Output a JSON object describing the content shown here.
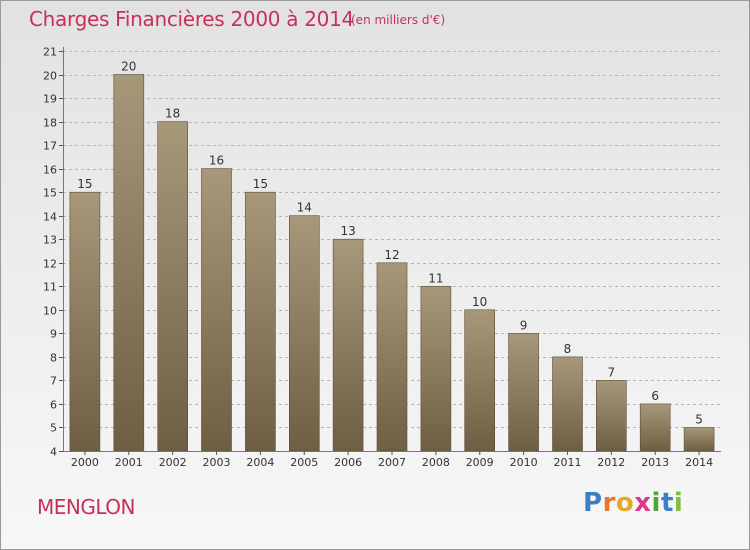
{
  "colors": {
    "accent": "#c8305a",
    "bar_light": "#a7987a",
    "bar_dark": "#6e5f44",
    "axis_text": "#333333"
  },
  "chart_data": {
    "type": "bar",
    "title": "Charges Financières 2000 à 2014",
    "subtitle": "(en milliers d'€)",
    "categories": [
      "2000",
      "2001",
      "2002",
      "2003",
      "2004",
      "2005",
      "2006",
      "2007",
      "2008",
      "2009",
      "2010",
      "2011",
      "2012",
      "2013",
      "2014"
    ],
    "values": [
      15,
      20,
      18,
      16,
      15,
      14,
      13,
      12,
      11,
      10,
      9,
      8,
      7,
      6,
      5
    ],
    "y_ticks": [
      4,
      5,
      6,
      7,
      8,
      9,
      10,
      11,
      12,
      13,
      14,
      15,
      16,
      17,
      18,
      19,
      20,
      21
    ],
    "ylim": [
      4,
      21
    ],
    "xlabel": "",
    "ylabel": "",
    "grid": true
  },
  "footer": {
    "commune": "MENGLON",
    "logo_letters": [
      "P",
      "r",
      "o",
      "x",
      "i",
      "t",
      "i"
    ],
    "logo_colors": [
      "#3b7fc4",
      "#e8762d",
      "#e2a92a",
      "#d93a8c",
      "#4aa63c",
      "#3b7fc4",
      "#7dbf3a"
    ]
  }
}
